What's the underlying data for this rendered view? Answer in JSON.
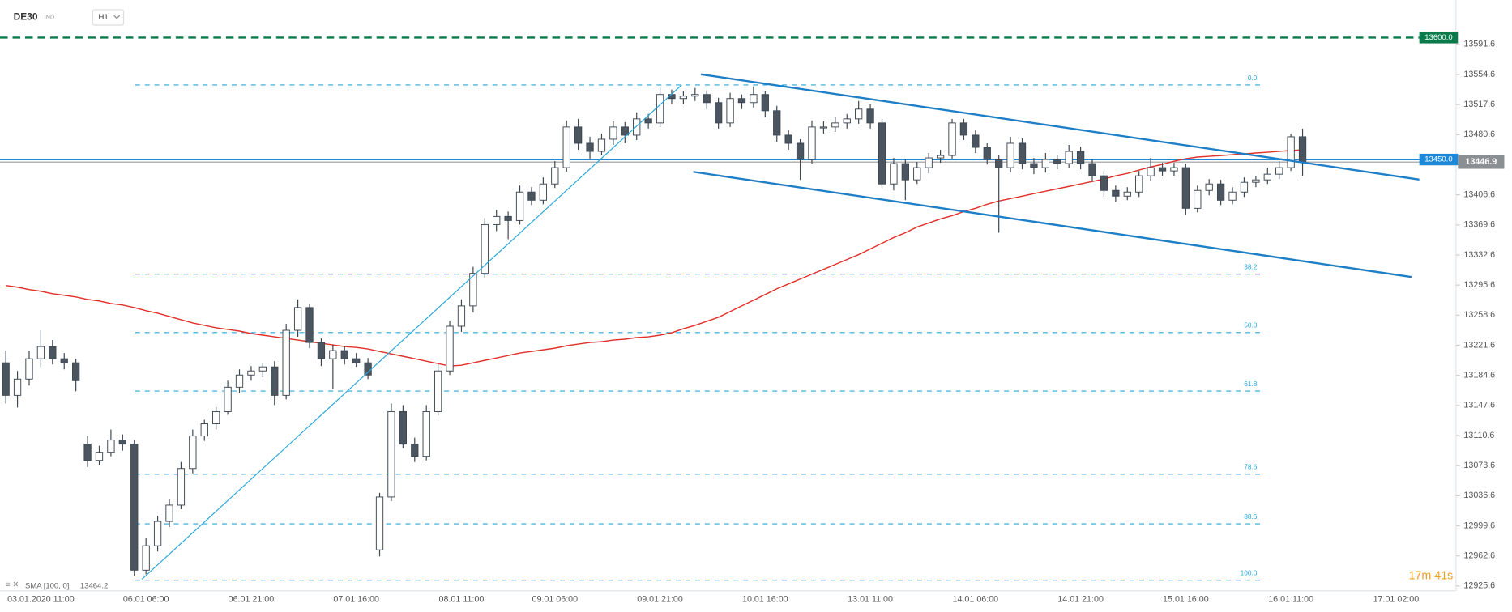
{
  "header": {
    "symbol": "DE30",
    "market": "IND",
    "timeframe": "H1"
  },
  "chart_data": {
    "type": "candlestick",
    "categories": [
      null,
      null,
      null,
      "03.01.2020 11:00",
      null,
      null,
      null,
      null,
      null,
      null,
      null,
      null,
      "06.01 06:00",
      null,
      null,
      null,
      null,
      null,
      null,
      null,
      null,
      "06.01 21:00",
      null,
      null,
      null,
      null,
      null,
      null,
      null,
      null,
      "07.01 16:00",
      null,
      null,
      null,
      null,
      null,
      null,
      null,
      null,
      "08.01 11:00",
      null,
      null,
      null,
      null,
      null,
      null,
      null,
      "09.01 06:00",
      null,
      null,
      null,
      null,
      null,
      null,
      null,
      null,
      "09.01 21:00",
      null,
      null,
      null,
      null,
      null,
      null,
      null,
      null,
      "10.01 16:00",
      null,
      null,
      null,
      null,
      null,
      null,
      null,
      null,
      "13.01 11:00",
      null,
      null,
      null,
      null,
      null,
      null,
      null,
      null,
      "14.01 06:00",
      null,
      null,
      null,
      null,
      null,
      null,
      null,
      null,
      "14.01 21:00",
      null,
      null,
      null,
      null,
      null,
      null,
      null,
      null,
      "15.01 16:00",
      null,
      null,
      null,
      null,
      null,
      null,
      null,
      null,
      "16.01 11:00",
      null,
      null,
      null,
      null,
      null,
      null,
      null,
      null,
      "17.01 02:00"
    ],
    "candles": [
      [
        13200,
        13215,
        13150,
        13160
      ],
      [
        13160,
        13190,
        13145,
        13180
      ],
      [
        13180,
        13215,
        13172,
        13205
      ],
      [
        13205,
        13240,
        13195,
        13220
      ],
      [
        13220,
        13228,
        13198,
        13205
      ],
      [
        13205,
        13212,
        13192,
        13200
      ],
      [
        13200,
        13205,
        13165,
        13178
      ],
      [
        13100,
        13110,
        13072,
        13080
      ],
      [
        13080,
        13098,
        13074,
        13090
      ],
      [
        13090,
        13118,
        13085,
        13105
      ],
      [
        13105,
        13112,
        13092,
        13100
      ],
      [
        13100,
        13105,
        12938,
        12945
      ],
      [
        12945,
        12985,
        12940,
        12975
      ],
      [
        12975,
        13012,
        12968,
        13005
      ],
      [
        13005,
        13032,
        12998,
        13025
      ],
      [
        13025,
        13078,
        13020,
        13070
      ],
      [
        13070,
        13118,
        13064,
        13110
      ],
      [
        13110,
        13130,
        13104,
        13125
      ],
      [
        13125,
        13146,
        13118,
        13140
      ],
      [
        13140,
        13178,
        13136,
        13170
      ],
      [
        13170,
        13192,
        13163,
        13185
      ],
      [
        13185,
        13196,
        13178,
        13190
      ],
      [
        13190,
        13200,
        13182,
        13195
      ],
      [
        13195,
        13202,
        13148,
        13160
      ],
      [
        13160,
        13248,
        13155,
        13240
      ],
      [
        13240,
        13278,
        13232,
        13268
      ],
      [
        13268,
        13272,
        13218,
        13225
      ],
      [
        13225,
        13230,
        13196,
        13205
      ],
      [
        13205,
        13222,
        13168,
        13215
      ],
      [
        13215,
        13220,
        13198,
        13205
      ],
      [
        13205,
        13212,
        13195,
        13200
      ],
      [
        13200,
        13206,
        13180,
        13185
      ],
      [
        12970,
        13040,
        12962,
        13035
      ],
      [
        13035,
        13150,
        13030,
        13140
      ],
      [
        13140,
        13148,
        13095,
        13100
      ],
      [
        13100,
        13108,
        13078,
        13085
      ],
      [
        13085,
        13148,
        13080,
        13140
      ],
      [
        13140,
        13198,
        13135,
        13190
      ],
      [
        13190,
        13252,
        13185,
        13245
      ],
      [
        13245,
        13278,
        13238,
        13270
      ],
      [
        13270,
        13318,
        13262,
        13310
      ],
      [
        13310,
        13378,
        13304,
        13370
      ],
      [
        13370,
        13388,
        13362,
        13380
      ],
      [
        13380,
        13386,
        13352,
        13375
      ],
      [
        13375,
        13418,
        13370,
        13410
      ],
      [
        13410,
        13416,
        13394,
        13400
      ],
      [
        13400,
        13428,
        13395,
        13420
      ],
      [
        13420,
        13448,
        13415,
        13440
      ],
      [
        13440,
        13498,
        13435,
        13490
      ],
      [
        13490,
        13500,
        13462,
        13470
      ],
      [
        13470,
        13478,
        13450,
        13460
      ],
      [
        13460,
        13482,
        13455,
        13475
      ],
      [
        13475,
        13497,
        13468,
        13490
      ],
      [
        13490,
        13496,
        13470,
        13480
      ],
      [
        13480,
        13508,
        13474,
        13500
      ],
      [
        13500,
        13506,
        13488,
        13495
      ],
      [
        13495,
        13540,
        13490,
        13530
      ],
      [
        13530,
        13536,
        13518,
        13525
      ],
      [
        13525,
        13534,
        13518,
        13528
      ],
      [
        13528,
        13538,
        13522,
        13530
      ],
      [
        13530,
        13535,
        13512,
        13520
      ],
      [
        13520,
        13526,
        13488,
        13495
      ],
      [
        13495,
        13532,
        13490,
        13525
      ],
      [
        13525,
        13530,
        13512,
        13520
      ],
      [
        13520,
        13540,
        13514,
        13530
      ],
      [
        13530,
        13534,
        13502,
        13510
      ],
      [
        13510,
        13516,
        13472,
        13480
      ],
      [
        13480,
        13486,
        13462,
        13470
      ],
      [
        13470,
        13475,
        13425,
        13450
      ],
      [
        13450,
        13498,
        13445,
        13490
      ],
      [
        13490,
        13497,
        13482,
        13490
      ],
      [
        13490,
        13502,
        13484,
        13495
      ],
      [
        13495,
        13506,
        13488,
        13500
      ],
      [
        13500,
        13522,
        13494,
        13512
      ],
      [
        13512,
        13518,
        13488,
        13495
      ],
      [
        13495,
        13500,
        13415,
        13420
      ],
      [
        13420,
        13452,
        13412,
        13445
      ],
      [
        13445,
        13450,
        13400,
        13425
      ],
      [
        13425,
        13447,
        13420,
        13440
      ],
      [
        13440,
        13458,
        13433,
        13452
      ],
      [
        13452,
        13462,
        13446,
        13455
      ],
      [
        13455,
        13500,
        13450,
        13495
      ],
      [
        13495,
        13500,
        13474,
        13480
      ],
      [
        13480,
        13486,
        13458,
        13465
      ],
      [
        13465,
        13470,
        13444,
        13450
      ],
      [
        13450,
        13455,
        13360,
        13440
      ],
      [
        13440,
        13478,
        13434,
        13470
      ],
      [
        13470,
        13476,
        13438,
        13445
      ],
      [
        13445,
        13452,
        13432,
        13440
      ],
      [
        13440,
        13458,
        13434,
        13450
      ],
      [
        13450,
        13456,
        13438,
        13445
      ],
      [
        13445,
        13468,
        13440,
        13460
      ],
      [
        13460,
        13466,
        13438,
        13445
      ],
      [
        13445,
        13450,
        13423,
        13430
      ],
      [
        13430,
        13436,
        13404,
        13412
      ],
      [
        13412,
        13418,
        13398,
        13405
      ],
      [
        13405,
        13416,
        13400,
        13410
      ],
      [
        13410,
        13436,
        13404,
        13430
      ],
      [
        13430,
        13452,
        13424,
        13440
      ],
      [
        13440,
        13446,
        13430,
        13436
      ],
      [
        13436,
        13446,
        13430,
        13440
      ],
      [
        13440,
        13445,
        13382,
        13390
      ],
      [
        13390,
        13418,
        13385,
        13412
      ],
      [
        13412,
        13426,
        13406,
        13420
      ],
      [
        13420,
        13425,
        13394,
        13400
      ],
      [
        13400,
        13416,
        13395,
        13410
      ],
      [
        13410,
        13428,
        13404,
        13422
      ],
      [
        13422,
        13430,
        13416,
        13425
      ],
      [
        13425,
        13440,
        13420,
        13432
      ],
      [
        13432,
        13448,
        13426,
        13440
      ],
      [
        13440,
        13482,
        13436,
        13478
      ],
      [
        13478,
        13488,
        13430,
        13446.9
      ],
      null,
      null,
      null,
      null,
      null,
      null,
      null,
      null
    ],
    "up_color": "#ffffff",
    "down_color": "#4a5560",
    "wick_color": "#3d4752",
    "sma": {
      "name": "SMA [100, 0]",
      "last": 13464.2,
      "color": "#e0312b",
      "values": [
        13295,
        13293,
        13290,
        13288,
        13285,
        13283,
        13281,
        13278,
        13276,
        13273,
        13271,
        13268,
        13264,
        13261,
        13257,
        13253,
        13249,
        13246,
        13243,
        13241,
        13239,
        13236,
        13234,
        13232,
        13230,
        13228,
        13226,
        13224,
        13222,
        13220,
        13219,
        13217,
        13214,
        13211,
        13208,
        13205,
        13202,
        13199,
        13196,
        13197,
        13200,
        13203,
        13206,
        13209,
        13212,
        13214,
        13216,
        13218,
        13221,
        13223,
        13225,
        13226,
        13228,
        13229,
        13231,
        13232,
        13234,
        13237,
        13242,
        13246,
        13251,
        13256,
        13263,
        13270,
        13277,
        13284,
        13291,
        13297,
        13303,
        13309,
        13315,
        13321,
        13327,
        13333,
        13340,
        13347,
        13354,
        13360,
        13367,
        13372,
        13377,
        13381,
        13386,
        13390,
        13395,
        13399,
        13402,
        13405,
        13408,
        13411,
        13414,
        13417,
        13420,
        13423,
        13426,
        13430,
        13433,
        13437,
        13441,
        13444,
        13448,
        13451,
        13453,
        13454,
        13455,
        13456,
        13457,
        13458,
        13459,
        13460,
        13461,
        13462,
        null,
        null,
        null,
        null,
        null,
        null,
        null,
        null
      ]
    },
    "ylim": [
      12916.1,
      13646.2
    ],
    "yticks": [
      13591.6,
      13554.6,
      13517.6,
      13480.6,
      13406.6,
      13369.6,
      13332.6,
      13295.6,
      13258.6,
      13221.6,
      13184.6,
      13147.6,
      13110.6,
      13073.6,
      13036.6,
      12999.6,
      12962.6,
      12925.6
    ],
    "fib": {
      "color": "#2aa7d8",
      "levels": [
        {
          "label": "0.0",
          "price": 13541.7
        },
        {
          "label": "38.2",
          "price": 13309.1
        },
        {
          "label": "50.0",
          "price": 13237.2
        },
        {
          "label": "61.8",
          "price": 13165.3
        },
        {
          "label": "78.6",
          "price": 13063
        },
        {
          "label": "88.6",
          "price": 13002
        },
        {
          "label": "100.0",
          "price": 12932.7
        }
      ]
    },
    "price_lines": [
      {
        "value": 13600,
        "label": "13600.0",
        "color": "#0a7a4a",
        "dashed": true
      },
      {
        "value": 13450,
        "label": "13450.0",
        "color": "#1e88d8",
        "dashed": false
      }
    ],
    "current_price": 13446.9,
    "timer": "17m 41s"
  }
}
